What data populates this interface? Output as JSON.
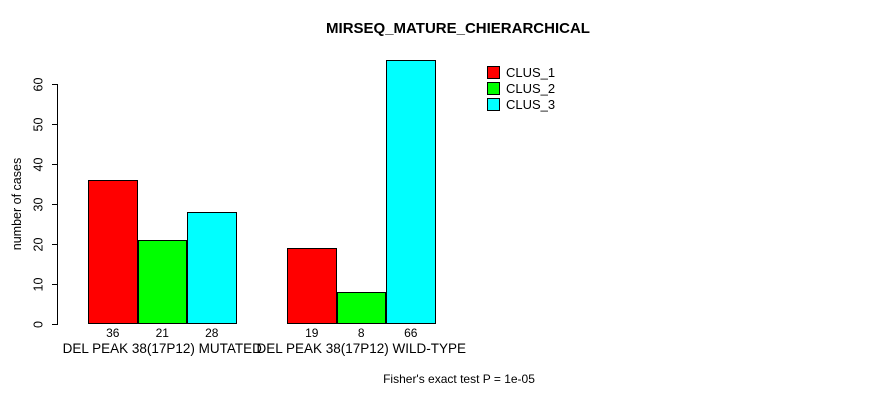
{
  "title": "MIRSEQ_MATURE_CHIERARCHICAL",
  "footer": "Fisher's exact test P = 1e-05",
  "y_axis": {
    "label": "number of cases",
    "ticks": [
      0,
      10,
      20,
      30,
      40,
      50,
      60
    ]
  },
  "legend": {
    "items": [
      {
        "label": "CLUS_1",
        "color": "#FF0000"
      },
      {
        "label": "CLUS_2",
        "color": "#00FF00"
      },
      {
        "label": "CLUS_3",
        "color": "#00FFFF"
      }
    ]
  },
  "chart_data": {
    "type": "bar",
    "title": "MIRSEQ_MATURE_CHIERARCHICAL",
    "categories": [
      "DEL PEAK 38(17P12) MUTATED",
      "DEL PEAK 38(17P12) WILD-TYPE"
    ],
    "series": [
      {
        "name": "CLUS_1",
        "color": "#FF0000",
        "values": [
          36,
          19
        ]
      },
      {
        "name": "CLUS_2",
        "color": "#00FF00",
        "values": [
          21,
          8
        ]
      },
      {
        "name": "CLUS_3",
        "color": "#00FFFF",
        "values": [
          28,
          66
        ]
      }
    ],
    "bar_value_labels": [
      [
        36,
        21,
        28
      ],
      [
        19,
        8,
        66
      ]
    ],
    "xlabel": "",
    "ylabel": "number of cases",
    "ylim": [
      0,
      66
    ],
    "y_ticks": [
      0,
      10,
      20,
      30,
      40,
      50,
      60
    ],
    "grid": false,
    "bar_border_color": "#000000",
    "legend_position": "top-right",
    "annotation": "Fisher's exact test P = 1e-05"
  }
}
